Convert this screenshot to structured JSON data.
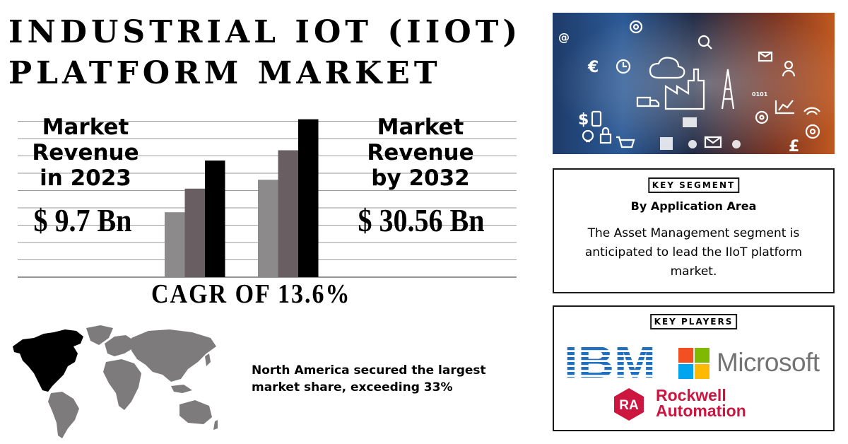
{
  "title": {
    "line1": "INDUSTRIAL IOT (IIOT)",
    "line2": "PLATFORM MARKET"
  },
  "left_metric": {
    "label": "Market\nRevenue\nin 2023",
    "value": "$ 9.7 Bn"
  },
  "right_metric": {
    "label": "Market\nRevenue\nby 2032",
    "value": "$ 30.56 Bn"
  },
  "cagr": "CAGR OF 13.6%",
  "chart_data": {
    "type": "bar",
    "groups": [
      {
        "bars": [
          {
            "value": 4.4,
            "color": "#8c8a8b"
          },
          {
            "value": 6.0,
            "color": "#695f62"
          },
          {
            "value": 7.9,
            "color": "#000000"
          }
        ]
      },
      {
        "bars": [
          {
            "value": 6.6,
            "color": "#8c8a8b"
          },
          {
            "value": 8.6,
            "color": "#695f62"
          },
          {
            "value": 10.7,
            "color": "#000000"
          }
        ]
      }
    ],
    "ylim": [
      0,
      11.5
    ],
    "grid": true,
    "grid_lines": 10
  },
  "region_note": "North America secured the largest market share, exceeding 33%",
  "segment": {
    "tag": "KEY SEGMENT",
    "subtitle": "By Application Area",
    "description": "The Asset Management segment is anticipated to lead the IIoT platform market."
  },
  "players": {
    "tag": "KEY PLAYERS",
    "logos": [
      {
        "name": "IBM",
        "text": "IBM",
        "color": "#1f70c1"
      },
      {
        "name": "Microsoft",
        "text": "Microsoft",
        "color": "#737373"
      },
      {
        "name": "Rockwell Automation",
        "text": "Rockwell\nAutomation",
        "badge": "RA",
        "color": "#cd163f"
      }
    ]
  },
  "hero_image": {
    "icons": [
      "gear-icon",
      "euro-icon",
      "pound-icon",
      "factory-icon",
      "cloud-icon",
      "truck-icon",
      "cart-icon",
      "mail-icon",
      "lock-icon",
      "chart-icon"
    ]
  }
}
